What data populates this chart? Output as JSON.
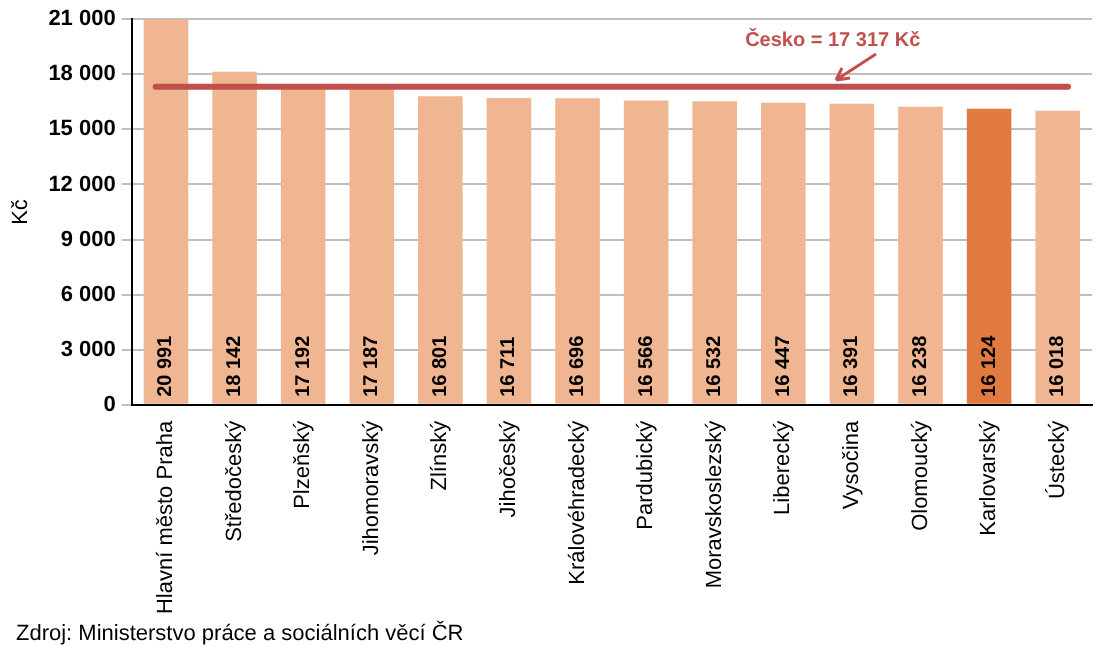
{
  "chart_data": {
    "type": "bar",
    "ylabel": "Kč",
    "categories": [
      "Hlavní město Praha",
      "Středočeský",
      "Plzeňský",
      "Jihomoravský",
      "Zlínský",
      "Jihočeský",
      "Královéhradecký",
      "Pardubický",
      "Moravskoslezský",
      "Liberecký",
      "Vysočina",
      "Olomoucký",
      "Karlovarský",
      "Ústecký"
    ],
    "values": [
      20991,
      18142,
      17192,
      17187,
      16801,
      16711,
      16696,
      16566,
      16532,
      16447,
      16391,
      16238,
      16124,
      16018
    ],
    "colors": [
      "#f0b591",
      "#f0b591",
      "#f0b591",
      "#f0b591",
      "#f0b591",
      "#f0b591",
      "#f0b591",
      "#f0b591",
      "#f0b591",
      "#f0b591",
      "#f0b591",
      "#f0b591",
      "#e07a3e",
      "#f0b591"
    ],
    "value_labels": [
      "20 991",
      "18 142",
      "17 192",
      "17 187",
      "16 801",
      "16 711",
      "16 696",
      "16 566",
      "16 532",
      "16 447",
      "16 391",
      "16 238",
      "16 124",
      "16 018"
    ],
    "ylim": [
      0,
      21000
    ],
    "yticks": [
      0,
      {
        "value": 3000,
        "label": "3 000"
      },
      {
        "value": 6000,
        "label": "6 000"
      },
      {
        "value": 9000,
        "label": "9 000"
      },
      {
        "value": 12000,
        "label": "12 000"
      },
      {
        "value": 15000,
        "label": "15 000"
      },
      {
        "value": 18000,
        "label": "18 000"
      },
      {
        "value": 21000,
        "label": "21 000"
      }
    ],
    "ref_lines": [
      {
        "axis": "y",
        "value": 17317,
        "label": "Česko = 17 317 Kč",
        "color": "#c0504d"
      }
    ],
    "annotations": [
      "Zdroj: Ministerstvo práce a sociálních věcí ČR"
    ],
    "grid": "y",
    "legend": false
  }
}
